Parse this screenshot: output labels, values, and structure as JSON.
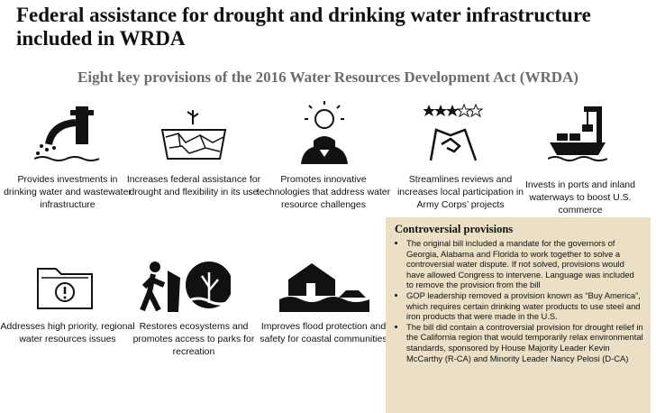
{
  "header": {
    "title": "Federal assistance for drought and drinking water infrastructure included in WRDA",
    "subtitle": "Eight key provisions of the 2016 Water Resources Development Act (WRDA)"
  },
  "provisions": [
    "Provides investments in drinking water and wastewater infrastructure",
    "Increases federal assistance for drought and flexibility in its use",
    "Promotes innovative technologies that address water resource challenges",
    "Streamlines reviews and increases local participation in Army Corps’ projects",
    "Invests in ports and inland waterways to boost U.S. commerce",
    "Addresses high priority, regional water resources issues",
    "Restores ecosystems and promotes access to parks for recreation",
    "Improves flood protection and safety for coastal communities"
  ],
  "sidebar": {
    "title": "Controversial provisions",
    "bullets": [
      "The original bill included a mandate for the governors of Georgia, Alabama and Florida to work together to solve a controversial water dispute. If not solved, provisions would have allowed Congress to intervene. Language was included to remove the provision from the bill",
      "GOP leadership removed a provision known as “Buy America”, which requires certain drinking water products to use steel and iron products that were made in the U.S.",
      "The bill did contain a controversial provision for drought relief in the California region that would temporarily relax environmental standards, sponsored by House Majority Leader Kevin McCarthy (R-CA) and Minority Leader Nancy Pelosi (D-CA)"
    ]
  }
}
